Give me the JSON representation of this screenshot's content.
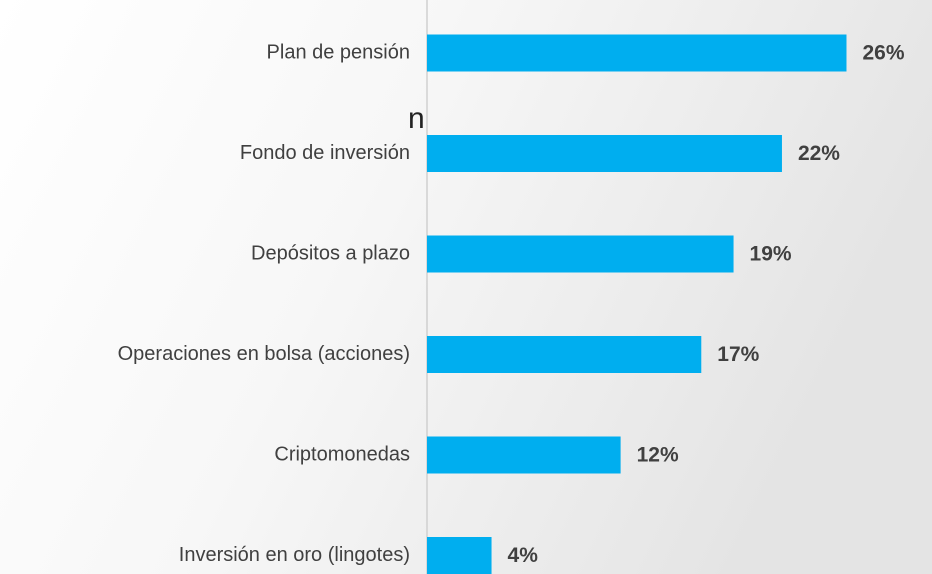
{
  "chart_data": {
    "type": "barh",
    "annotation": "n",
    "categories": [
      "Plan de pensión",
      "Fondo de inversión",
      "Depósitos a plazo",
      "Operaciones en bolsa (acciones)",
      "Criptomonedas",
      "Inversión en oro (lingotes)"
    ],
    "values": [
      26,
      22,
      19,
      17,
      12,
      4
    ],
    "value_labels": [
      "26%",
      "22%",
      "19%",
      "17%",
      "12%",
      "4%"
    ],
    "color": "#00aeef",
    "xlim": [
      0,
      31.3
    ]
  }
}
